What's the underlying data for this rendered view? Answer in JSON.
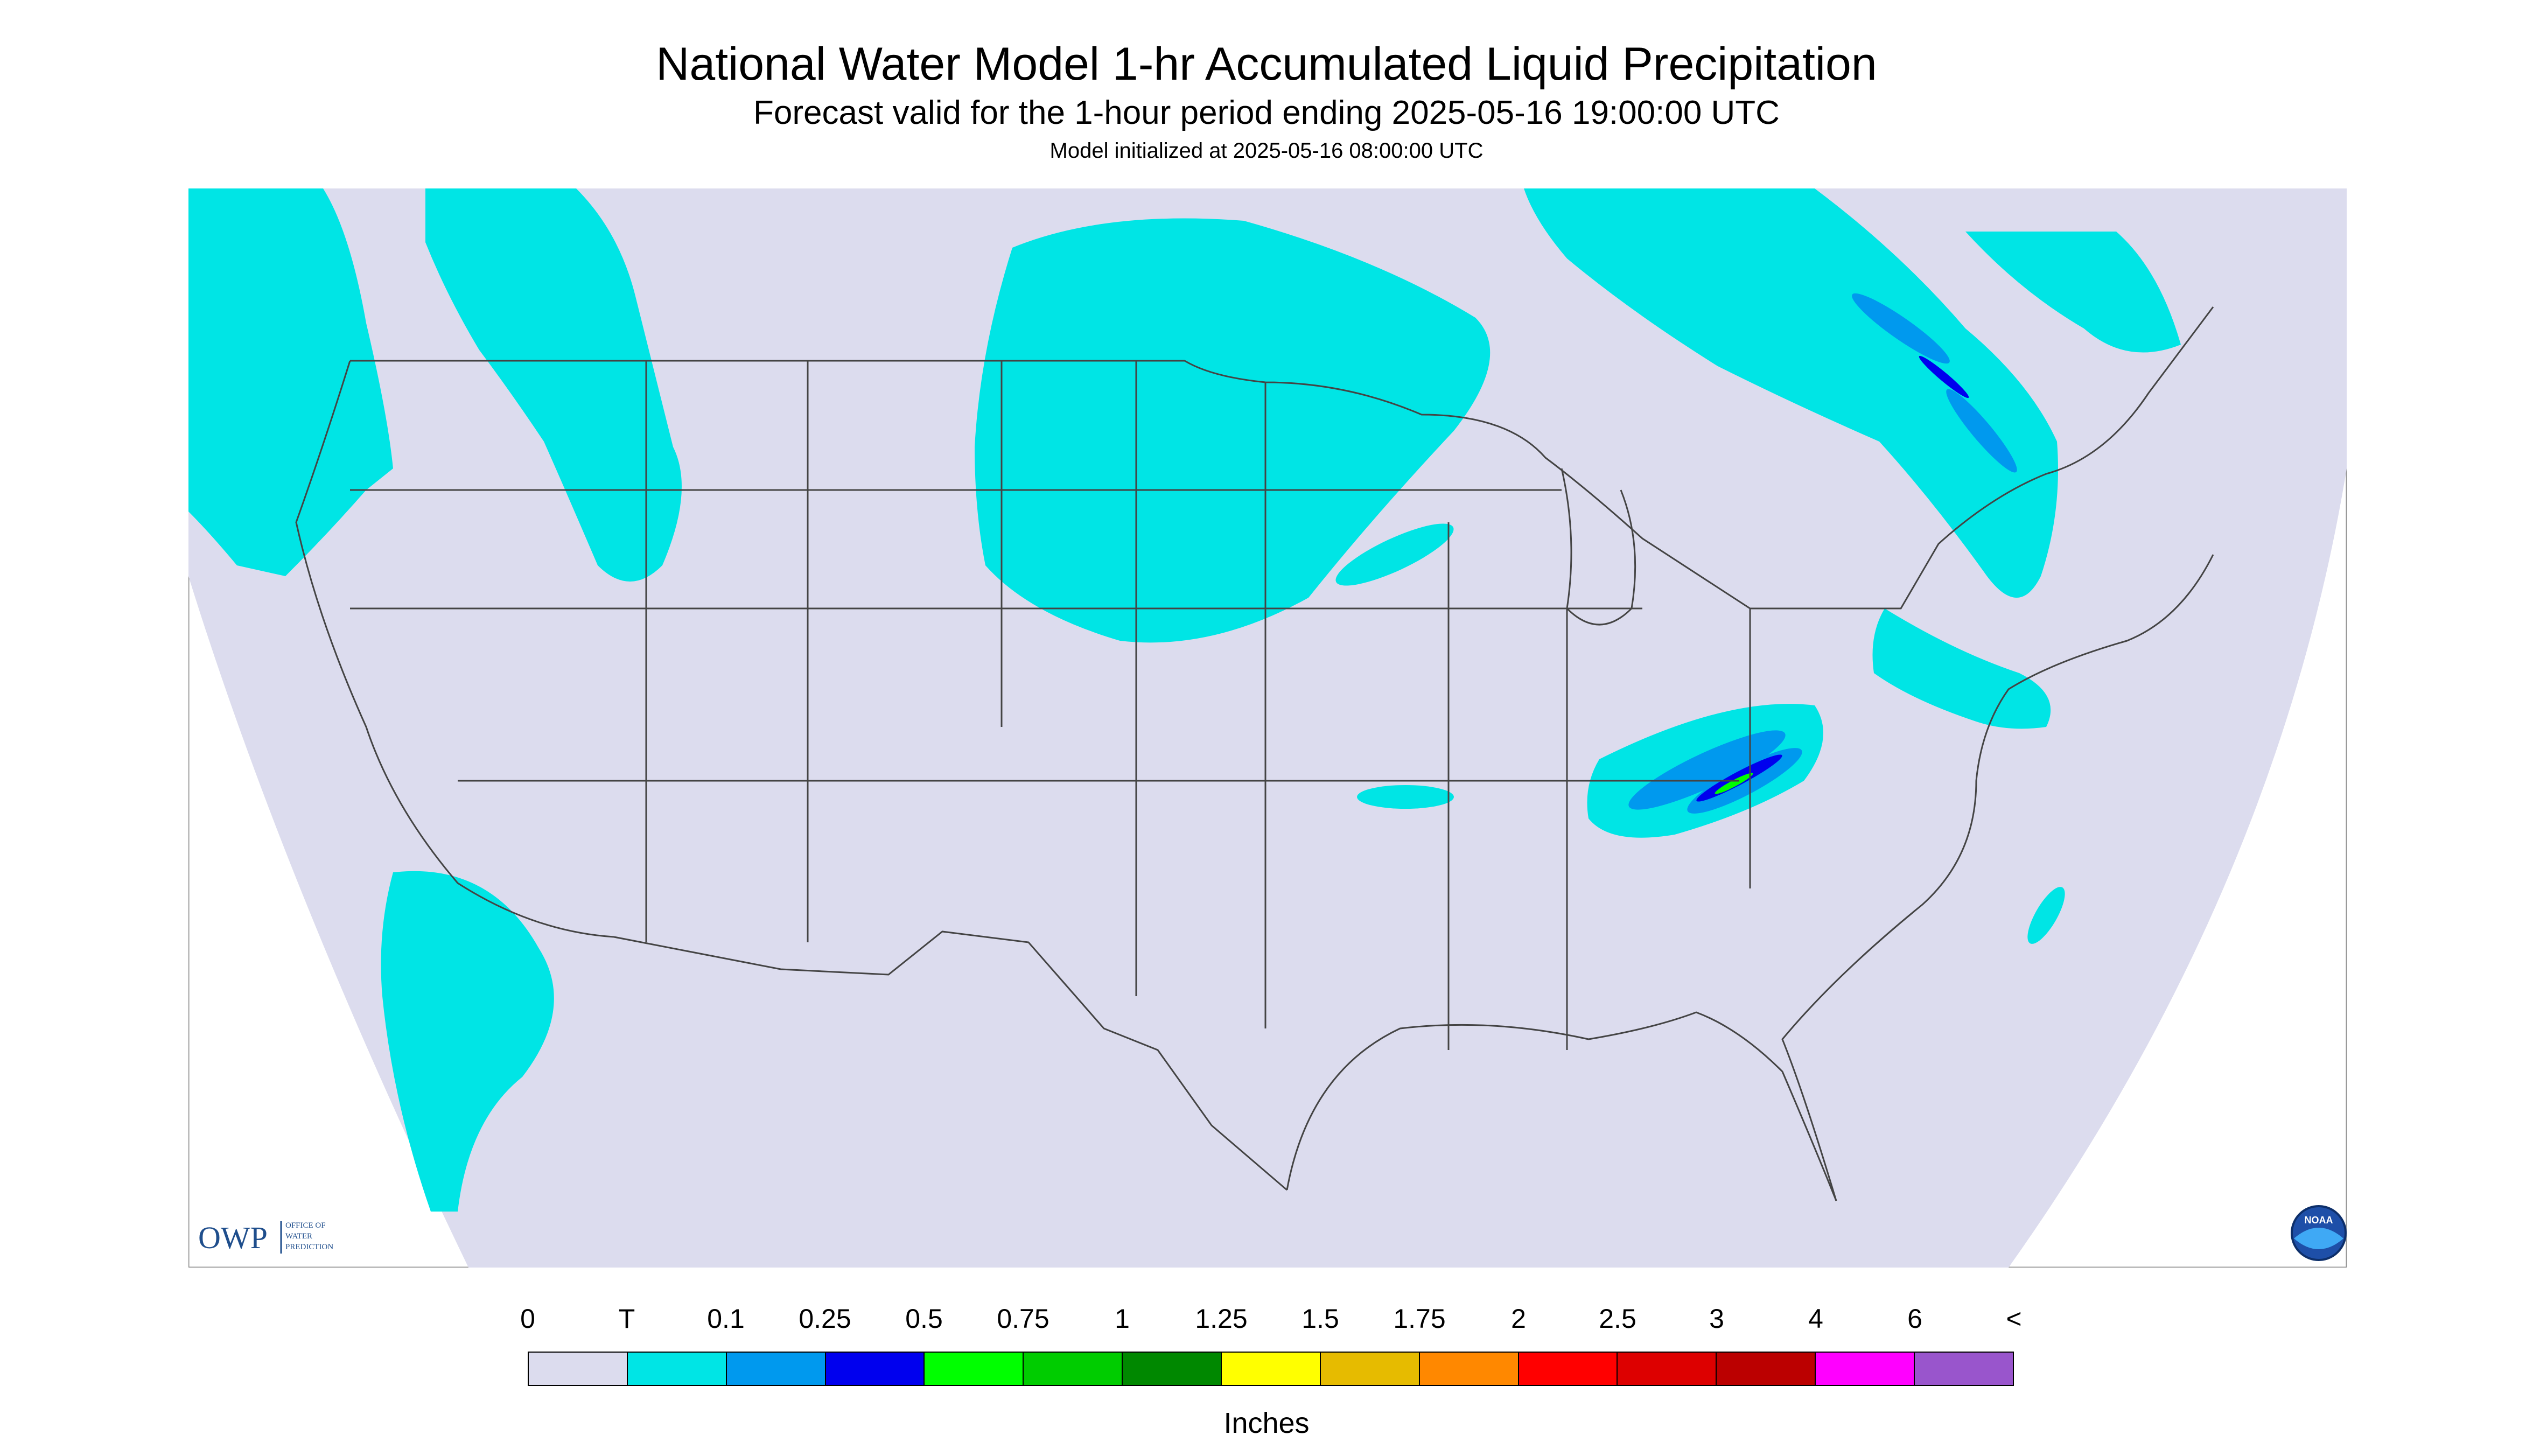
{
  "header": {
    "title": "National Water Model 1-hr Accumulated Liquid Precipitation",
    "subtitle": "Forecast valid for the 1-hour period ending 2025-05-16 19:00:00 UTC",
    "init": "Model initialized at 2025-05-16 08:00:00 UTC"
  },
  "logos": {
    "owp_mark": "OWP",
    "owp_line1": "OFFICE OF",
    "owp_line2": "WATER",
    "owp_line3": "PREDICTION",
    "noaa_mark": "NOAA"
  },
  "legend": {
    "labels": [
      "0",
      "T",
      "0.1",
      "0.25",
      "0.5",
      "0.75",
      "1",
      "1.25",
      "1.5",
      "1.75",
      "2",
      "2.5",
      "3",
      "4",
      "6",
      "<"
    ],
    "colors": [
      "#dcdcee",
      "#00e5e5",
      "#0099ee",
      "#0000ee",
      "#00ff00",
      "#00cc00",
      "#008800",
      "#ffff00",
      "#e6bb00",
      "#ff8800",
      "#ff0000",
      "#dd0000",
      "#bb0000",
      "#ff00ff",
      "#9955cc"
    ],
    "units": "Inches"
  },
  "map_colors": {
    "no_data": "#ffffff",
    "zero": "#dcdcee",
    "trace": "#00e5e5",
    "light": "#0099ee",
    "moderate": "#0000ee",
    "heavy": "#00ff00",
    "borders": "#444444"
  }
}
